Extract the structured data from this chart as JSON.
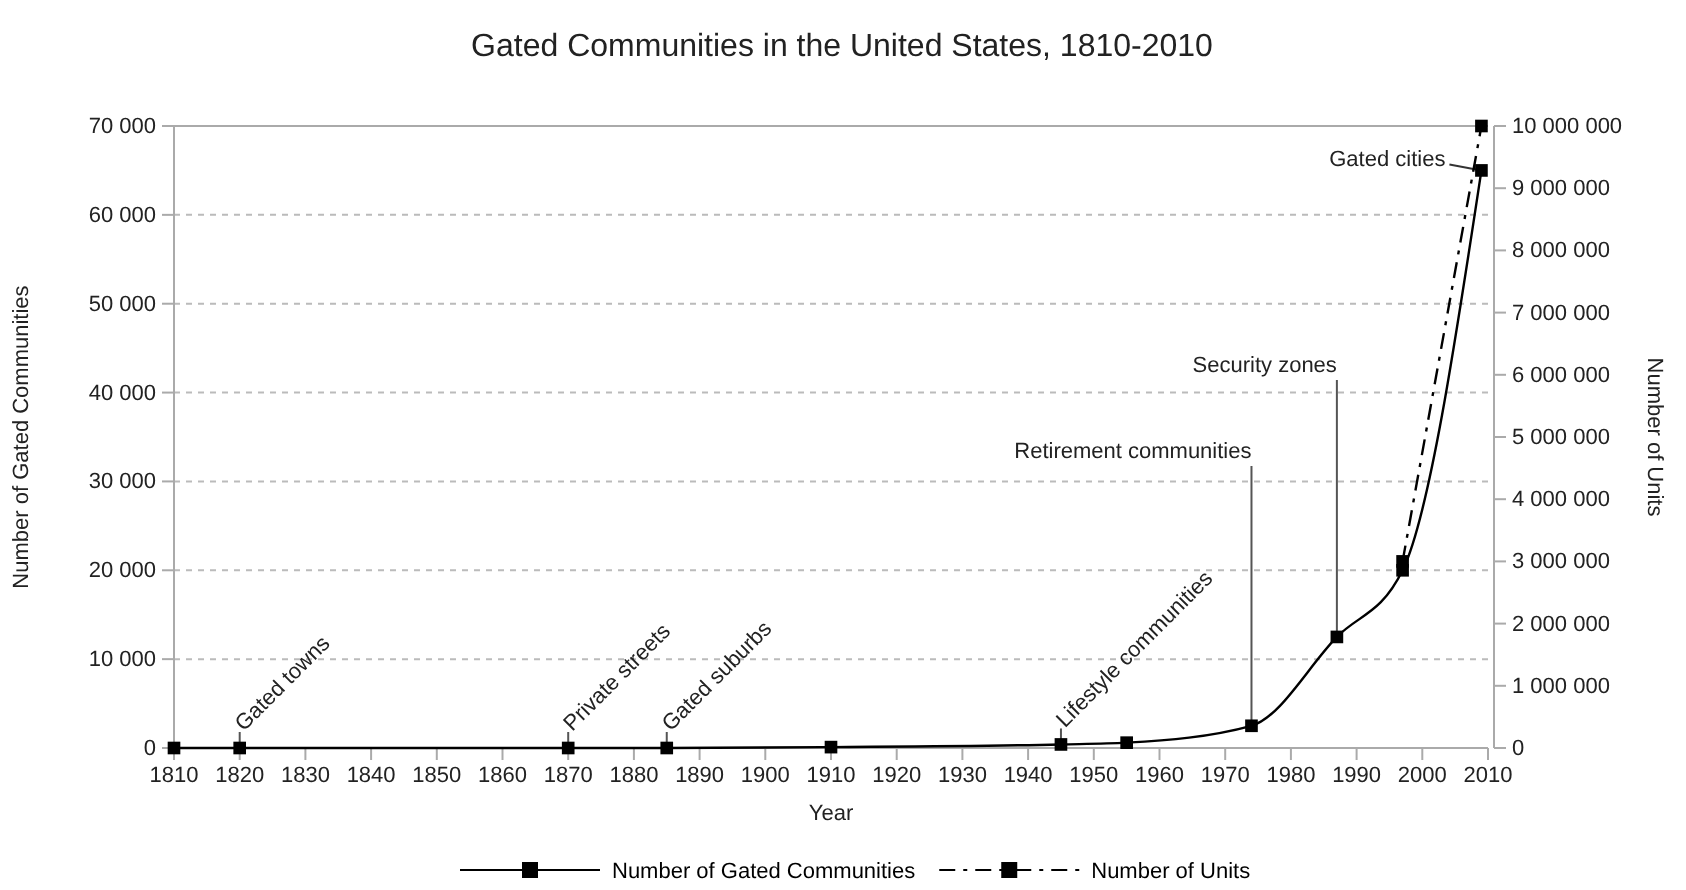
{
  "chart_data": {
    "type": "line",
    "title": "Gated Communities in the United States, 1810-2010",
    "xlabel": "Year",
    "ylabel": "Number of Gated Communities",
    "y2label": "Number of Units",
    "xlim": [
      1810,
      2010
    ],
    "xticks": [
      1810,
      1820,
      1830,
      1840,
      1850,
      1860,
      1870,
      1880,
      1890,
      1900,
      1910,
      1920,
      1930,
      1940,
      1950,
      1960,
      1970,
      1980,
      1990,
      2000,
      2010
    ],
    "ylim": [
      0,
      70000
    ],
    "yticks": [
      {
        "value": 0,
        "label": "0"
      },
      {
        "value": 10000,
        "label": "10 000"
      },
      {
        "value": 20000,
        "label": "20 000"
      },
      {
        "value": 30000,
        "label": "30 000"
      },
      {
        "value": 40000,
        "label": "40 000"
      },
      {
        "value": 50000,
        "label": "50 000"
      },
      {
        "value": 60000,
        "label": "60 000"
      },
      {
        "value": 70000,
        "label": "70 000"
      }
    ],
    "y2lim": [
      0,
      10000000
    ],
    "y2ticks": [
      {
        "value": 0,
        "label": "0"
      },
      {
        "value": 1000000,
        "label": "1 000 000"
      },
      {
        "value": 2000000,
        "label": "2 000 000"
      },
      {
        "value": 3000000,
        "label": "3 000 000"
      },
      {
        "value": 4000000,
        "label": "4 000 000"
      },
      {
        "value": 5000000,
        "label": "5 000 000"
      },
      {
        "value": 6000000,
        "label": "6 000 000"
      },
      {
        "value": 7000000,
        "label": "7 000 000"
      },
      {
        "value": 8000000,
        "label": "8 000 000"
      },
      {
        "value": 9000000,
        "label": "9 000 000"
      },
      {
        "value": 10000000,
        "label": "10 000 000"
      }
    ],
    "grid": "y",
    "legend": "bottom",
    "marker": "square",
    "series": [
      {
        "name": "Number of Gated Communities",
        "color": "#000000",
        "line_style": "solid",
        "x": [
          1810,
          1820,
          1870,
          1885,
          1910,
          1945,
          1955,
          1974,
          1987,
          1997,
          2009
        ],
        "values": [
          0,
          0,
          0,
          0,
          100,
          400,
          600,
          2500,
          12500,
          20000,
          65000
        ]
      },
      {
        "name": "Number of Units",
        "color": "#000000",
        "line_style": "dashed",
        "axis": "y2",
        "x": [
          1997,
          2009
        ],
        "values": [
          3000000,
          10000000
        ]
      }
    ],
    "annotations": [
      {
        "text": "Gated towns",
        "x": 1820,
        "y": 0
      },
      {
        "text": "Private streets",
        "x": 1870,
        "y": 0
      },
      {
        "text": "Gated suburbs",
        "x": 1885,
        "y": 0
      },
      {
        "text": "Lifestyle communities",
        "x": 1945,
        "y": 400
      },
      {
        "text": "Retirement communities",
        "x": 1974,
        "y": 2500
      },
      {
        "text": "Security zones",
        "x": 1987,
        "y": 12500
      },
      {
        "text": "Gated cities",
        "x": 2009,
        "y": 65000
      }
    ]
  }
}
